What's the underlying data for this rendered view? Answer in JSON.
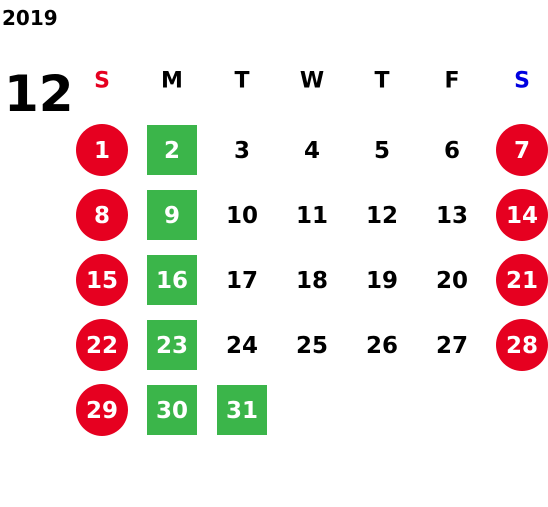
{
  "year": "2019",
  "month": "12",
  "weekdays": [
    "S",
    "M",
    "T",
    "W",
    "T",
    "F",
    "S"
  ],
  "weeks": [
    [
      1,
      2,
      3,
      4,
      5,
      6,
      7
    ],
    [
      8,
      9,
      10,
      11,
      12,
      13,
      14
    ],
    [
      15,
      16,
      17,
      18,
      19,
      20,
      21
    ],
    [
      22,
      23,
      24,
      25,
      26,
      27,
      28
    ],
    [
      29,
      30,
      31,
      null,
      null,
      null,
      null
    ]
  ]
}
